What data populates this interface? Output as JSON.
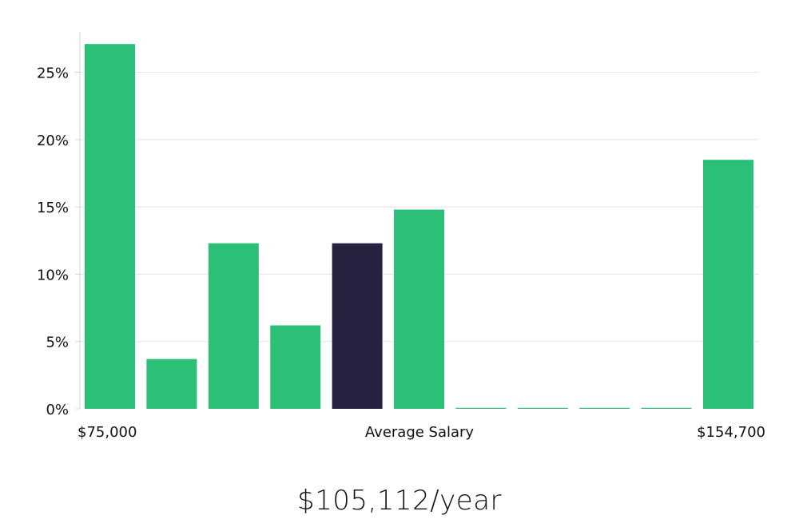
{
  "chart_data": {
    "type": "bar",
    "title": "",
    "xlabel": "Average Salary",
    "ylabel": "",
    "x_range_labels": {
      "start": "$75,000",
      "end": "$154,700"
    },
    "ylim": [
      0,
      28
    ],
    "yticks": [
      0,
      5,
      10,
      15,
      20,
      25
    ],
    "ytick_labels": [
      "0%",
      "5%",
      "10%",
      "15%",
      "20%",
      "25%"
    ],
    "grid": true,
    "values": [
      27.1,
      3.7,
      12.3,
      6.2,
      12.3,
      14.8,
      0,
      0,
      0,
      0,
      18.5
    ],
    "highlight_index": 4,
    "bar_color": "#2bbf78",
    "highlight_color": "#262341",
    "grid_color": "#e3e3e3",
    "axis_color": "#d4d4d4"
  },
  "summary": {
    "salary_text": "$105,112/year"
  }
}
